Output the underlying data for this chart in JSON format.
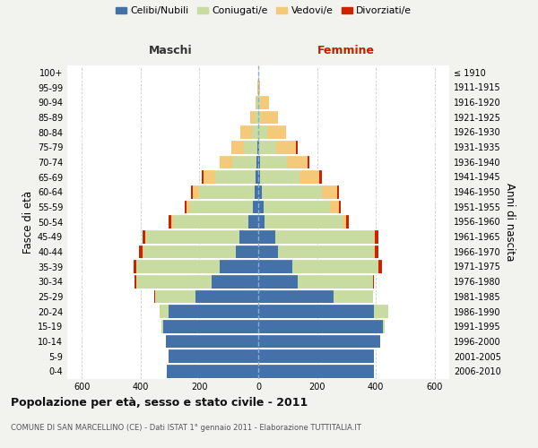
{
  "age_groups": [
    "0-4",
    "5-9",
    "10-14",
    "15-19",
    "20-24",
    "25-29",
    "30-34",
    "35-39",
    "40-44",
    "45-49",
    "50-54",
    "55-59",
    "60-64",
    "65-69",
    "70-74",
    "75-79",
    "80-84",
    "85-89",
    "90-94",
    "95-99",
    "100+"
  ],
  "birth_years": [
    "2006-2010",
    "2001-2005",
    "1996-2000",
    "1991-1995",
    "1986-1990",
    "1981-1985",
    "1976-1980",
    "1971-1975",
    "1966-1970",
    "1961-1965",
    "1956-1960",
    "1951-1955",
    "1946-1950",
    "1941-1945",
    "1936-1940",
    "1931-1935",
    "1926-1930",
    "1921-1925",
    "1916-1920",
    "1911-1915",
    "≤ 1910"
  ],
  "male_celibi": [
    310,
    305,
    315,
    325,
    305,
    215,
    160,
    130,
    75,
    65,
    35,
    18,
    12,
    10,
    5,
    2,
    0,
    0,
    0,
    0,
    0
  ],
  "male_coniugati": [
    0,
    0,
    0,
    5,
    30,
    135,
    255,
    285,
    315,
    315,
    255,
    215,
    190,
    135,
    85,
    48,
    22,
    8,
    5,
    0,
    0
  ],
  "male_vedovi": [
    0,
    0,
    0,
    0,
    0,
    0,
    0,
    0,
    5,
    5,
    6,
    12,
    22,
    42,
    42,
    42,
    38,
    20,
    5,
    2,
    0
  ],
  "male_divorziati": [
    0,
    0,
    0,
    0,
    0,
    5,
    5,
    10,
    10,
    10,
    10,
    5,
    5,
    5,
    0,
    0,
    0,
    0,
    0,
    0,
    0
  ],
  "female_nubili": [
    395,
    395,
    415,
    425,
    395,
    255,
    135,
    115,
    68,
    58,
    22,
    18,
    12,
    5,
    5,
    2,
    0,
    0,
    0,
    0,
    0
  ],
  "female_coniugate": [
    0,
    0,
    0,
    5,
    48,
    135,
    255,
    295,
    325,
    335,
    265,
    225,
    205,
    135,
    92,
    58,
    32,
    10,
    5,
    0,
    0
  ],
  "female_vedove": [
    0,
    0,
    0,
    0,
    0,
    0,
    0,
    0,
    5,
    5,
    12,
    32,
    52,
    68,
    72,
    68,
    62,
    58,
    32,
    5,
    0
  ],
  "female_divorziate": [
    0,
    0,
    0,
    0,
    0,
    0,
    5,
    10,
    10,
    10,
    10,
    5,
    5,
    10,
    5,
    5,
    0,
    0,
    0,
    0,
    0
  ],
  "color_celibi": "#4472a8",
  "color_coniugati": "#c8dba0",
  "color_vedovi": "#f5c97a",
  "color_divorziati": "#cc2200",
  "xlim": 650,
  "xticks": [
    -600,
    -400,
    -200,
    0,
    200,
    400,
    600
  ],
  "title": "Popolazione per età, sesso e stato civile - 2011",
  "subtitle": "COMUNE DI SAN MARCELLINO (CE) - Dati ISTAT 1° gennaio 2011 - Elaborazione TUTTITALIA.IT",
  "ylabel_left": "Fasce di età",
  "ylabel_right": "Anni di nascita",
  "legend_labels": [
    "Celibi/Nubili",
    "Coniugati/e",
    "Vedovi/e",
    "Divorziati/e"
  ],
  "label_maschi": "Maschi",
  "label_femmine": "Femmine",
  "bg_color": "#f2f2ee",
  "plot_bg": "#ffffff",
  "grid_color": "#cccccc",
  "bar_height": 0.88
}
